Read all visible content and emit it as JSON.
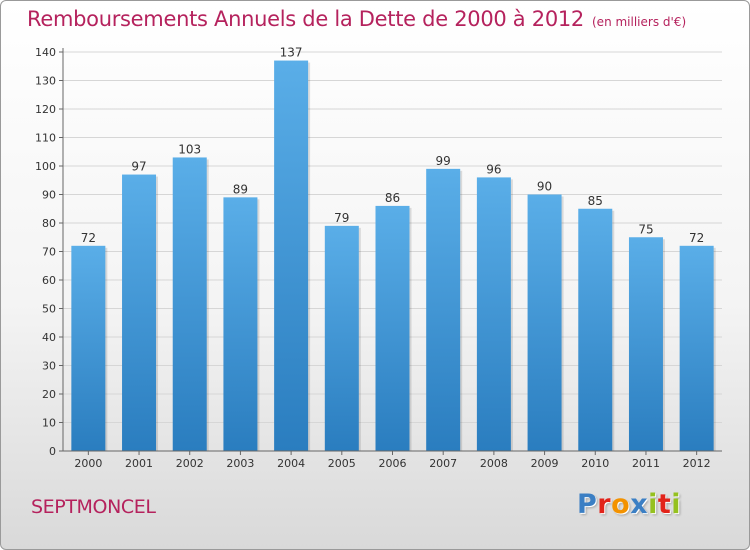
{
  "chart_data": {
    "type": "bar",
    "title": "Remboursements Annuels de la Dette de 2000 à 2012",
    "unit_label": "(en milliers d'€)",
    "categories": [
      "2000",
      "2001",
      "2002",
      "2003",
      "2004",
      "2005",
      "2006",
      "2007",
      "2008",
      "2009",
      "2010",
      "2011",
      "2012"
    ],
    "values": [
      72,
      97,
      103,
      89,
      137,
      79,
      86,
      99,
      96,
      90,
      85,
      75,
      72
    ],
    "ylim": [
      0,
      140
    ],
    "yticks": [
      0,
      10,
      20,
      30,
      40,
      50,
      60,
      70,
      80,
      90,
      100,
      110,
      120,
      130,
      140
    ],
    "grid": true,
    "bar_color_top": "#5aaee8",
    "bar_color_bottom": "#2a7dbf"
  },
  "footer": {
    "commune": "SEPTMONCEL"
  },
  "logo": {
    "text": "Proxiti",
    "letters": [
      "P",
      "r",
      "o",
      "x",
      "i",
      "t",
      "i"
    ],
    "letter_colors": [
      "#3b7fc4",
      "#e2231a",
      "#f39200",
      "#3b7fc4",
      "#95c11f",
      "#e2231a",
      "#95c11f"
    ]
  }
}
